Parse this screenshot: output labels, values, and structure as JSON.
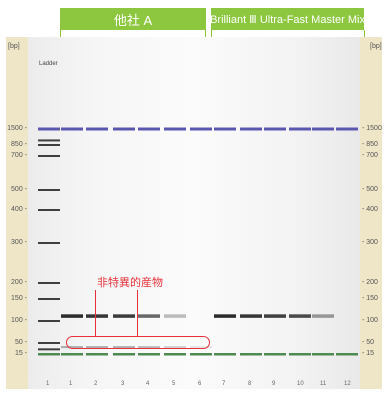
{
  "header": {
    "group_a": "他社 A",
    "group_b": "Brilliant Ⅲ Ultra-Fast Master Mix"
  },
  "axis": {
    "unit_left": "[bp]",
    "unit_right": "[bp]",
    "left_ticks": [
      {
        "label": "1500 -",
        "bp": 1500
      },
      {
        "label": "850 -",
        "bp": 850
      },
      {
        "label": "700 -",
        "bp": 700
      },
      {
        "label": "500 -",
        "bp": 500
      },
      {
        "label": "400 -",
        "bp": 400
      },
      {
        "label": "300 -",
        "bp": 300
      },
      {
        "label": "200 -",
        "bp": 200
      },
      {
        "label": "150 -",
        "bp": 150
      },
      {
        "label": "100 -",
        "bp": 100
      },
      {
        "label": "50 -",
        "bp": 50
      },
      {
        "label": "15 -",
        "bp": 15
      }
    ],
    "right_ticks": [
      {
        "label": "- 1500",
        "bp": 1500
      },
      {
        "label": "- 850",
        "bp": 850
      },
      {
        "label": "- 700",
        "bp": 700
      },
      {
        "label": "- 500",
        "bp": 500
      },
      {
        "label": "- 400",
        "bp": 400
      },
      {
        "label": "- 300",
        "bp": 300
      },
      {
        "label": "- 200",
        "bp": 200
      },
      {
        "label": "- 150",
        "bp": 150
      },
      {
        "label": "- 100",
        "bp": 100
      },
      {
        "label": "- 50",
        "bp": 50
      },
      {
        "label": "- 15",
        "bp": 15
      }
    ]
  },
  "gel": {
    "ladder_label": "Ladder",
    "lanes": [
      "1",
      "1",
      "2",
      "3",
      "4",
      "5",
      "6",
      "7",
      "8",
      "9",
      "10",
      "11",
      "12"
    ],
    "upper_marker_bp": 1500,
    "lower_marker_bp": 15,
    "ladder_bands_bp": [
      1500,
      1000,
      850,
      700,
      500,
      400,
      300,
      200,
      150,
      100,
      50,
      25,
      15
    ],
    "product_bp": 110,
    "product_intensity": [
      null,
      1.0,
      0.95,
      0.92,
      0.7,
      0.3,
      0,
      1.0,
      0.95,
      0.9,
      0.85,
      0.45,
      0
    ],
    "nonspecific_bp": 32,
    "nonspecific_intensity": [
      null,
      0.35,
      0.35,
      0.35,
      0.3,
      0.2,
      0.1,
      0,
      0,
      0,
      0,
      0,
      0
    ],
    "colors": {
      "upper_marker": "#5b57b0",
      "lower_marker": "#4f8a53",
      "band": "#2b2b2b",
      "annotation": "#e8323b",
      "header": "#8dc73f"
    }
  },
  "annotation": {
    "label": "非特異的産物"
  }
}
